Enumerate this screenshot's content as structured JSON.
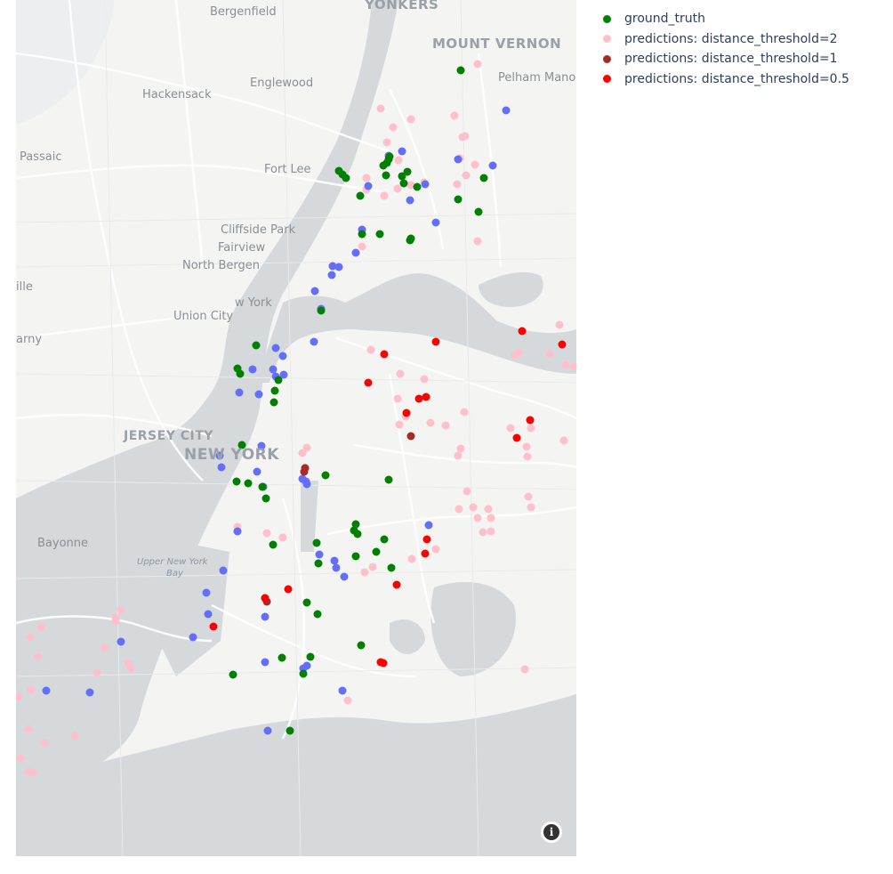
{
  "map": {
    "places": {
      "bergenfield": "Bergenfield",
      "yonkers": "YONKERS",
      "mount_vernon": "MOUNT VERNON",
      "pelham_manor": "Pelham Mano",
      "hackensack": "Hackensack",
      "englewood": "Englewood",
      "passaic": "Passaic",
      "fort_lee": "Fort Lee",
      "cliffside_park": "Cliffside Park",
      "fairview": "Fairview",
      "north_bergen": "North Bergen",
      "ille": "ille",
      "new_york_w": "w York",
      "union_city": "Union City",
      "arny": "arny",
      "jersey_city": "JERSEY CITY",
      "new_york": "NEW YORK",
      "bayonne": "Bayonne",
      "upper_ny_bay_1": "Upper New York",
      "upper_ny_bay_2": "Bay"
    },
    "info_icon": "i",
    "info_icon_name": "info-icon"
  },
  "legend": {
    "items": [
      {
        "label": "ground_truth",
        "color": "#008000"
      },
      {
        "label": "predictions: distance_threshold=2",
        "color": "#ffc0cb"
      },
      {
        "label": "predictions: distance_threshold=1",
        "color": "#a52a2a"
      },
      {
        "label": "predictions: distance_threshold=0.5",
        "color": "#ff0000"
      }
    ]
  }
}
